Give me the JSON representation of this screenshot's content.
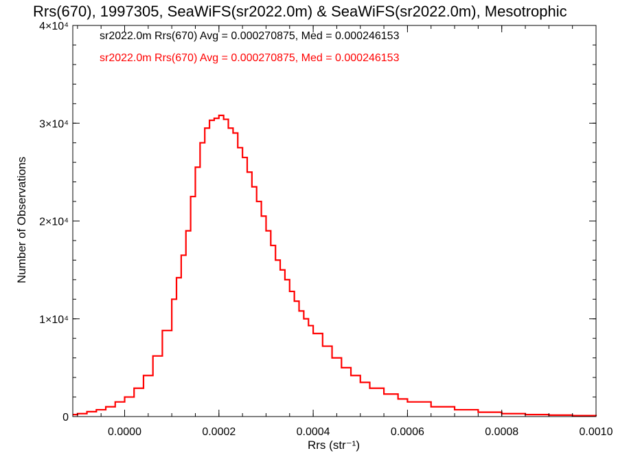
{
  "chart_data": {
    "type": "line",
    "title": "Rrs(670), 1997305, SeaWiFS(sr2022.0m) & SeaWiFS(sr2022.0m), Mesotrophic",
    "xlabel": "Rrs (str⁻¹)",
    "ylabel": "Number of Observations",
    "xlim": [
      -0.00011,
      0.001
    ],
    "ylim": [
      0,
      40000
    ],
    "xticks": [
      "0.0000",
      "0.0002",
      "0.0004",
      "0.0006",
      "0.0008",
      "0.0010"
    ],
    "xtick_values": [
      0,
      0.0002,
      0.0004,
      0.0006,
      0.0008,
      0.001
    ],
    "yticks": [
      "0",
      "1×10⁴",
      "2×10⁴",
      "3×10⁴",
      "4×10⁴"
    ],
    "ytick_values": [
      0,
      10000,
      20000,
      30000,
      40000
    ],
    "annotations": [
      {
        "text": "sr2022.0m Rrs(670) Avg = 0.000270875, Med = 0.000246153",
        "color": "#000000"
      },
      {
        "text": "sr2022.0m Rrs(670) Avg = 0.000270875, Med = 0.000246153",
        "color": "#ff0000"
      }
    ],
    "series": [
      {
        "color": "#ff0000",
        "style": "step",
        "x": [
          -0.00011,
          -0.0001,
          -8e-05,
          -6e-05,
          -4e-05,
          -2e-05,
          0,
          2e-05,
          4e-05,
          6e-05,
          8e-05,
          0.0001,
          0.00011,
          0.00012,
          0.00013,
          0.00014,
          0.00015,
          0.00016,
          0.00017,
          0.00018,
          0.00019,
          0.0002,
          0.00021,
          0.00022,
          0.00023,
          0.00024,
          0.00025,
          0.00026,
          0.00027,
          0.00028,
          0.00029,
          0.0003,
          0.00031,
          0.00032,
          0.00033,
          0.00034,
          0.00035,
          0.00036,
          0.00037,
          0.00038,
          0.00039,
          0.0004,
          0.00042,
          0.00044,
          0.00046,
          0.00048,
          0.0005,
          0.00052,
          0.00055,
          0.00058,
          0.0006,
          0.00065,
          0.0007,
          0.00075,
          0.0008,
          0.00085,
          0.0009,
          0.00095,
          0.001
        ],
        "values": [
          200,
          300,
          500,
          700,
          1000,
          1500,
          2000,
          2900,
          4200,
          6200,
          8800,
          12000,
          14200,
          16500,
          19000,
          22500,
          25500,
          28000,
          29500,
          30300,
          30500,
          30800,
          30400,
          29500,
          29000,
          27500,
          26500,
          25000,
          23500,
          22000,
          20500,
          19000,
          17500,
          16000,
          15000,
          14000,
          12800,
          11800,
          10800,
          10000,
          9300,
          8500,
          7200,
          6000,
          5000,
          4200,
          3500,
          2900,
          2300,
          1800,
          1500,
          1000,
          700,
          450,
          300,
          200,
          150,
          100,
          50
        ]
      }
    ]
  }
}
